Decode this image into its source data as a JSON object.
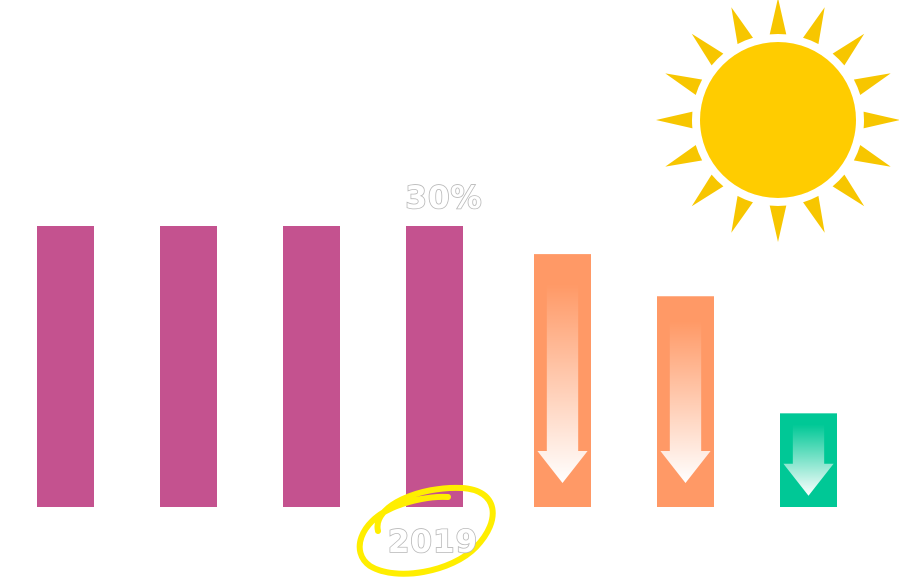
{
  "chart_data": {
    "type": "bar",
    "categories": [
      "",
      "",
      "",
      "2019",
      "",
      "",
      ""
    ],
    "values": [
      30,
      30,
      30,
      30,
      27,
      22.5,
      10
    ],
    "ylim": [
      0,
      30
    ],
    "data_labels": [
      {
        "index": 3,
        "text": "30%"
      }
    ],
    "highlighted_category": {
      "index": 3,
      "text": "2019"
    },
    "colors": {
      "historical": "#c4528f",
      "forecast": "#ff9966",
      "target": "#00c896",
      "arrow": "#ffffff",
      "sun_rays": "#f7c600",
      "sun_disc": "#ffcc00",
      "circle_highlight": "#ffee00"
    },
    "bar_kinds": [
      "historical",
      "historical",
      "historical",
      "historical",
      "forecast",
      "forecast",
      "target"
    ],
    "grid": false,
    "legend": "none",
    "decoration": "sun-icon"
  }
}
